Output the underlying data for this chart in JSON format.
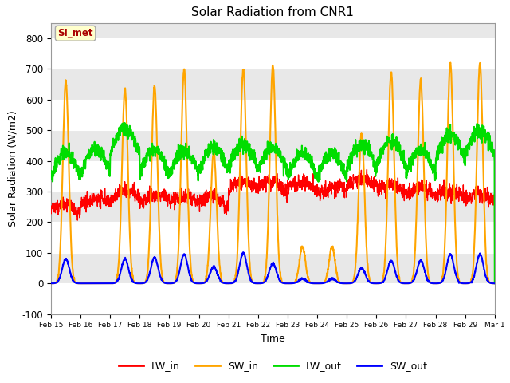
{
  "title": "Solar Radiation from CNR1",
  "xlabel": "Time",
  "ylabel": "Solar Radiation (W/m2)",
  "ylim": [
    -100,
    850
  ],
  "yticks": [
    -100,
    0,
    100,
    200,
    300,
    400,
    500,
    600,
    700,
    800
  ],
  "x_labels": [
    "Feb 15",
    "Feb 16",
    "Feb 17",
    "Feb 18",
    "Feb 19",
    "Feb 20",
    "Feb 21",
    "Feb 22",
    "Feb 23",
    "Feb 24",
    "Feb 25",
    "Feb 26",
    "Feb 27",
    "Feb 28",
    "Feb 29",
    "Mar 1"
  ],
  "annotation_text": "SI_met",
  "annotation_box_color": "#FFFFCC",
  "annotation_text_color": "#AA0000",
  "bg_color": "#E8E8E8",
  "band_color_light": "#DCDCDC",
  "band_color_dark": "#F0F0F0",
  "grid_color": "#FFFFFF",
  "line_colors": {
    "LW_in": "#FF0000",
    "SW_in": "#FFA500",
    "LW_out": "#00DD00",
    "SW_out": "#0000FF"
  },
  "line_widths": {
    "LW_in": 1.0,
    "SW_in": 1.5,
    "LW_out": 1.5,
    "SW_out": 1.5
  },
  "n_days": 15,
  "points_per_day": 144,
  "SW_in_peaks": [
    660,
    0,
    635,
    645,
    700,
    430,
    700,
    710,
    120,
    120,
    490,
    690,
    665,
    720,
    720
  ],
  "SW_out_peaks": [
    80,
    0,
    80,
    85,
    95,
    55,
    100,
    65,
    15,
    15,
    50,
    75,
    75,
    95,
    95
  ],
  "LW_in_base": [
    235,
    260,
    280,
    270,
    265,
    260,
    310,
    310,
    310,
    295,
    320,
    300,
    290,
    280,
    270
  ],
  "LW_out_base": [
    345,
    360,
    425,
    355,
    355,
    365,
    375,
    365,
    345,
    345,
    375,
    385,
    355,
    405,
    420
  ]
}
